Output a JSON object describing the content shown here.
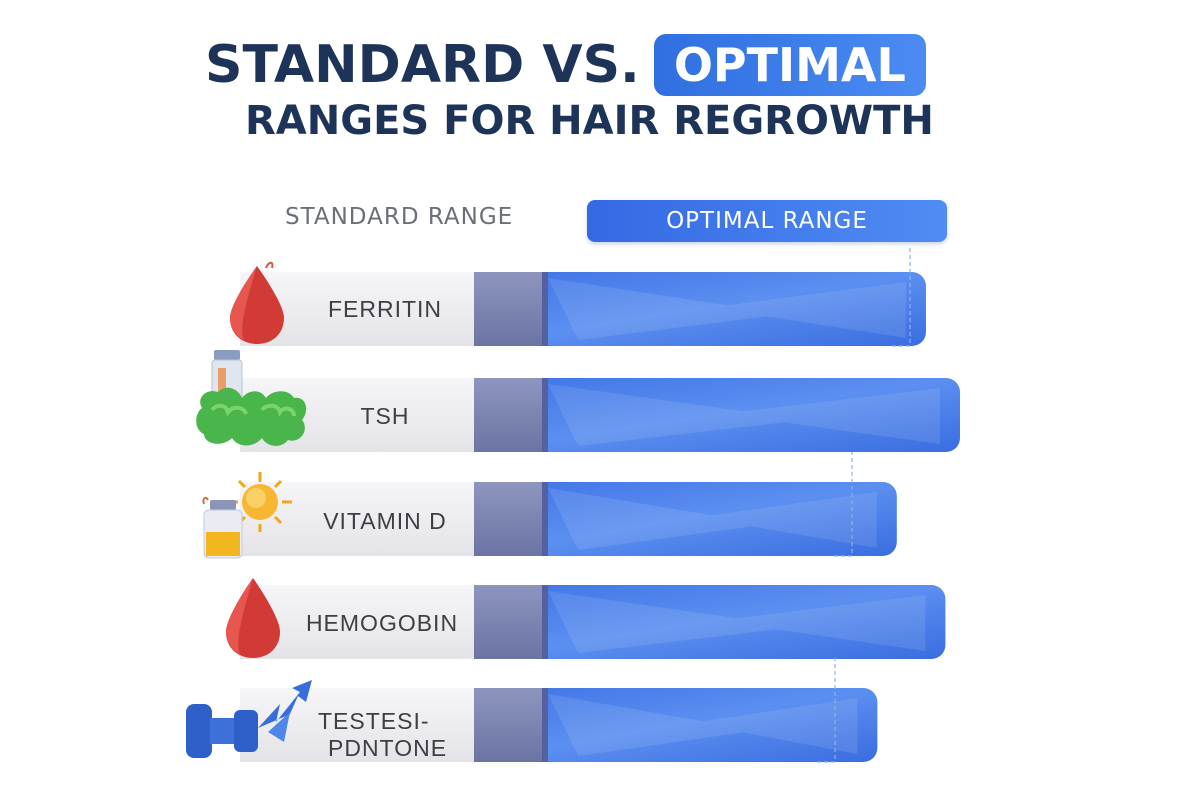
{
  "title": {
    "line1": "STANDARD VS.",
    "highlight": "OPTIMAL",
    "line2": "RANGES FOR HAIR REGROWTH"
  },
  "legend": {
    "standard": "STANDARD RANGE",
    "optimal": "OPTIMAL RANGE"
  },
  "chart_data": {
    "type": "bar",
    "orientation": "horizontal",
    "title": "STANDARD VS. OPTIMAL RANGES FOR HAIR REGROWTH",
    "categories": [
      "FERRITIN",
      "TSH",
      "VITAMIN D",
      "HEMOGOBIN",
      "TESTESI- PDNTONE"
    ],
    "series": [
      {
        "name": "STANDARD RANGE",
        "values": [
          1,
          1,
          1,
          1,
          1
        ]
      },
      {
        "name": "OPTIMAL RANGE",
        "values": [
          0.93,
          1.0,
          0.87,
          0.97,
          0.83
        ]
      }
    ],
    "grid": false,
    "legend_position": "top",
    "colors": {
      "standard_track": "#ececef",
      "standard_block": "#7d86b0",
      "optimal": "#4a7fe8"
    }
  },
  "icons": [
    "blood-drop-icon",
    "thyroid-icon",
    "vitamin-d-icon",
    "blood-drop-icon",
    "muscle-icon"
  ]
}
